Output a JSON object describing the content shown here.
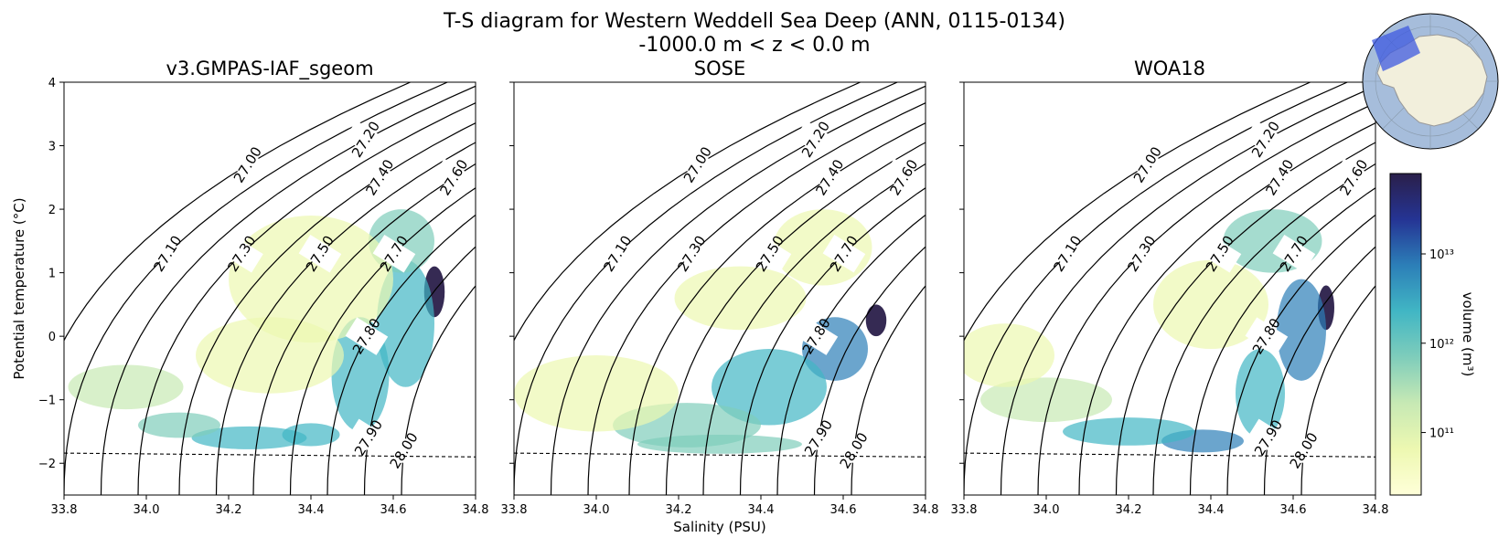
{
  "figure": {
    "title_line1": "T-S diagram for Western Weddell Sea Deep (ANN, 0115-0134)",
    "title_line2": "-1000.0 m < z < 0.0 m",
    "inset_map": "antarctic-region-inset-map"
  },
  "colors": {
    "cmap": [
      "#ffffd9",
      "#edf8b1",
      "#c7e9b4",
      "#7fcdbb",
      "#41b6c4",
      "#2c7fb8",
      "#253494",
      "#2a1f4a"
    ],
    "freezing_line": "#000000",
    "ocean": "#a6bddb",
    "land": "#f2efdc",
    "region": "#3d5ae0"
  },
  "chart_data": {
    "type": "heatmap",
    "xlabel": "Salinity (PSU)",
    "ylabel": "Potential temperature (°C)",
    "xlim": [
      33.8,
      34.8
    ],
    "ylim": [
      -2.5,
      4.0
    ],
    "xticks": [
      33.8,
      34.0,
      34.2,
      34.4,
      34.6,
      34.8
    ],
    "xtick_labels": [
      "33.8",
      "34.0",
      "34.2",
      "34.4",
      "34.6",
      "34.8"
    ],
    "yticks": [
      -2,
      -1,
      0,
      1,
      2,
      3,
      4
    ],
    "ytick_labels": [
      "−2",
      "−1",
      "0",
      "1",
      "2",
      "3",
      "4"
    ],
    "freezing_line": {
      "style": "dashed",
      "x": [
        33.8,
        34.8
      ],
      "y": [
        -1.84,
        -1.9
      ]
    },
    "density_contours": [
      {
        "value": "27.00",
        "x_at_ymin": 33.71,
        "label_y": 2.7
      },
      {
        "value": "27.10",
        "x_at_ymin": 33.8,
        "label_y": 1.3
      },
      {
        "value": "27.20",
        "x_at_ymin": 33.89,
        "label_y": 3.1
      },
      {
        "value": "27.30",
        "x_at_ymin": 33.98,
        "label_y": 1.3
      },
      {
        "value": "27.40",
        "x_at_ymin": 34.08,
        "label_y": 2.5
      },
      {
        "value": "27.50",
        "x_at_ymin": 34.17,
        "label_y": 1.3
      },
      {
        "value": "27.60",
        "x_at_ymin": 34.26,
        "label_y": 2.5
      },
      {
        "value": "27.70",
        "x_at_ymin": 34.35,
        "label_y": 1.3
      },
      {
        "value": "27.80",
        "x_at_ymin": 34.44,
        "label_y": 0.0
      },
      {
        "value": "27.90",
        "x_at_ymin": 34.53,
        "label_y": -1.6
      },
      {
        "value": "28.00",
        "x_at_ymin": 34.62,
        "label_y": -1.8
      }
    ],
    "panels": [
      {
        "title": "v3.GMPAS-IAF_sgeom",
        "blobs": [
          {
            "s": 34.7,
            "t": 0.7,
            "rs": 0.025,
            "rt": 0.4,
            "level": 7
          },
          {
            "s": 34.63,
            "t": 0.2,
            "rs": 0.07,
            "rt": 1.0,
            "level": 4
          },
          {
            "s": 34.62,
            "t": 1.5,
            "rs": 0.08,
            "rt": 0.5,
            "level": 3
          },
          {
            "s": 34.52,
            "t": -0.6,
            "rs": 0.07,
            "rt": 0.9,
            "level": 4
          },
          {
            "s": 34.4,
            "t": -1.55,
            "rs": 0.07,
            "rt": 0.18,
            "level": 4
          },
          {
            "s": 34.25,
            "t": -1.6,
            "rs": 0.14,
            "rt": 0.18,
            "level": 4
          },
          {
            "s": 34.08,
            "t": -1.4,
            "rs": 0.1,
            "rt": 0.2,
            "level": 3
          },
          {
            "s": 33.95,
            "t": -0.8,
            "rs": 0.14,
            "rt": 0.35,
            "level": 2
          },
          {
            "s": 34.4,
            "t": 0.9,
            "rs": 0.2,
            "rt": 1.0,
            "level": 1
          },
          {
            "s": 34.3,
            "t": -0.3,
            "rs": 0.18,
            "rt": 0.6,
            "level": 1
          }
        ]
      },
      {
        "title": "SOSE",
        "blobs": [
          {
            "s": 34.68,
            "t": 0.25,
            "rs": 0.025,
            "rt": 0.25,
            "level": 7
          },
          {
            "s": 34.58,
            "t": -0.2,
            "rs": 0.08,
            "rt": 0.5,
            "level": 5
          },
          {
            "s": 34.42,
            "t": -0.8,
            "rs": 0.14,
            "rt": 0.6,
            "level": 4
          },
          {
            "s": 34.22,
            "t": -1.4,
            "rs": 0.18,
            "rt": 0.35,
            "level": 3
          },
          {
            "s": 34.0,
            "t": -0.9,
            "rs": 0.2,
            "rt": 0.6,
            "level": 1
          },
          {
            "s": 34.55,
            "t": 1.4,
            "rs": 0.12,
            "rt": 0.6,
            "level": 1
          },
          {
            "s": 34.35,
            "t": 0.6,
            "rs": 0.16,
            "rt": 0.5,
            "level": 1
          },
          {
            "s": 34.3,
            "t": -1.7,
            "rs": 0.2,
            "rt": 0.15,
            "level": 3
          }
        ]
      },
      {
        "title": "WOA18",
        "blobs": [
          {
            "s": 34.68,
            "t": 0.45,
            "rs": 0.02,
            "rt": 0.35,
            "level": 7
          },
          {
            "s": 34.62,
            "t": 0.1,
            "rs": 0.06,
            "rt": 0.8,
            "level": 5
          },
          {
            "s": 34.52,
            "t": -0.9,
            "rs": 0.06,
            "rt": 0.7,
            "level": 4
          },
          {
            "s": 34.38,
            "t": -1.65,
            "rs": 0.1,
            "rt": 0.18,
            "level": 5
          },
          {
            "s": 34.2,
            "t": -1.5,
            "rs": 0.16,
            "rt": 0.22,
            "level": 4
          },
          {
            "s": 34.0,
            "t": -1.0,
            "rs": 0.16,
            "rt": 0.35,
            "level": 2
          },
          {
            "s": 33.9,
            "t": -0.3,
            "rs": 0.12,
            "rt": 0.5,
            "level": 1
          },
          {
            "s": 34.55,
            "t": 1.5,
            "rs": 0.12,
            "rt": 0.5,
            "level": 3
          },
          {
            "s": 34.4,
            "t": 0.5,
            "rs": 0.14,
            "rt": 0.7,
            "level": 1
          }
        ]
      }
    ],
    "colorbar": {
      "label": "volume (m³)",
      "scale": "log",
      "range_exp": [
        10.3,
        13.9
      ],
      "ticks": [
        {
          "exp": 11,
          "label": "10¹¹"
        },
        {
          "exp": 12,
          "label": "10¹²"
        },
        {
          "exp": 13,
          "label": "10¹³"
        }
      ]
    }
  }
}
